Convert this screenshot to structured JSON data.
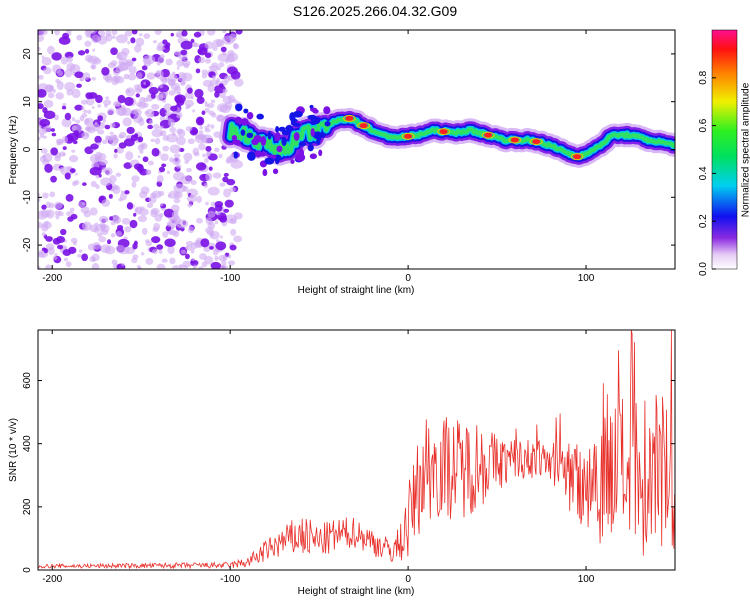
{
  "title": "S126.2025.266.04.32.G09",
  "colors": {
    "signal": "#e8302b",
    "speckle_dark": "#7a10e6",
    "speckle_light": "#cfa8f2",
    "axis": "#000000"
  },
  "chart_data": [
    {
      "type": "heatmap",
      "panel": "spectrogram",
      "xlabel": "Height of straight line (km)",
      "ylabel": "Frequency (Hz)",
      "xlim": [
        -208,
        150
      ],
      "ylim": [
        -25,
        25
      ],
      "xticks": [
        -200,
        -100,
        0,
        100
      ],
      "yticks": [
        -20,
        -10,
        0,
        10,
        20
      ],
      "noise_region_x": [
        -208,
        -95
      ],
      "ridge": {
        "x": [
          -100,
          -90,
          -80,
          -70,
          -60,
          -50,
          -40,
          -33,
          -25,
          -15,
          -5,
          5,
          15,
          25,
          35,
          45,
          55,
          65,
          75,
          85,
          95,
          105,
          115,
          125,
          135,
          150
        ],
        "freq": [
          4,
          3,
          1,
          0,
          3,
          4,
          6,
          6.5,
          5,
          3,
          2.5,
          3,
          4,
          3.5,
          4,
          3,
          2,
          2,
          1.5,
          0,
          -1.5,
          0,
          3,
          3,
          2,
          1
        ]
      },
      "colorbar": {
        "label": "Normalized spectral amplitude",
        "range": [
          0,
          1
        ],
        "ticks": [
          "0.0",
          "0.2",
          "0.4",
          "0.6",
          "0.8"
        ],
        "tick_values": [
          0,
          0.2,
          0.4,
          0.6,
          0.8
        ]
      }
    },
    {
      "type": "line",
      "panel": "snr",
      "xlabel": "Height of straight line (km)",
      "ylabel": "SNR (10 * v/v)",
      "xlim": [
        -208,
        150
      ],
      "ylim": [
        0,
        760
      ],
      "xticks": [
        -200,
        -100,
        0,
        100
      ],
      "yticks": [
        0,
        200,
        400,
        600
      ],
      "series": [
        {
          "name": "SNR",
          "color": "#e8302b",
          "envelope_x": [
            -208,
            -100,
            -90,
            -80,
            -70,
            -60,
            -50,
            -40,
            -30,
            -20,
            -10,
            -5,
            0,
            5,
            10,
            20,
            30,
            40,
            50,
            60,
            70,
            80,
            90,
            100,
            110,
            120,
            130,
            140,
            150
          ],
          "envelope_mean": [
            12,
            15,
            25,
            60,
            90,
            110,
            90,
            110,
            120,
            90,
            60,
            80,
            150,
            250,
            330,
            330,
            320,
            340,
            340,
            350,
            350,
            345,
            300,
            280,
            300,
            320,
            300,
            280,
            270
          ],
          "envelope_amp": [
            6,
            10,
            18,
            35,
            50,
            70,
            55,
            55,
            50,
            45,
            40,
            60,
            120,
            150,
            180,
            170,
            160,
            150,
            90,
            70,
            60,
            60,
            120,
            180,
            220,
            240,
            260,
            230,
            230
          ]
        }
      ]
    }
  ]
}
